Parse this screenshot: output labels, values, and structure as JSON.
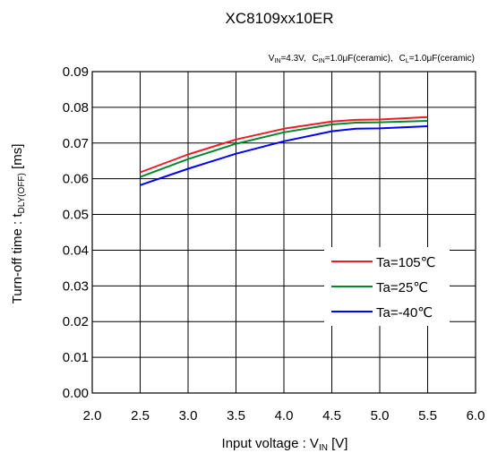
{
  "chart_data": {
    "type": "line",
    "title": "XC8109xx10ER",
    "conditions": {
      "vin_label": "V",
      "vin_sub": "IN",
      "vin_value": "=4.3V,",
      "cin_label": "C",
      "cin_sub": "IN",
      "cin_value": "=1.0μF(ceramic),",
      "cl_label": "C",
      "cl_sub": "L",
      "cl_value": "=1.0μF(ceramic)"
    },
    "xlabel": {
      "main": "Input voltage : V",
      "sub": "IN",
      "suffix": " [V]"
    },
    "ylabel": {
      "main": "Turn-off time : t",
      "sub": "DLY(OFF)",
      "suffix": " [ms]"
    },
    "xlim": [
      2.0,
      6.0
    ],
    "ylim": [
      0.0,
      0.09
    ],
    "x_ticks": [
      "2.0",
      "2.5",
      "3.0",
      "3.5",
      "4.0",
      "4.5",
      "5.0",
      "5.5",
      "6.0"
    ],
    "y_ticks": [
      "0.00",
      "0.01",
      "0.02",
      "0.03",
      "0.04",
      "0.05",
      "0.06",
      "0.07",
      "0.08",
      "0.09"
    ],
    "grid": true,
    "legend_position": "bottom-right",
    "series": [
      {
        "name": "Ta=105℃",
        "color": "#ee1c24",
        "x": [
          2.5,
          3.0,
          3.5,
          4.0,
          4.5,
          4.75,
          5.0,
          5.5
        ],
        "y": [
          0.0618,
          0.0668,
          0.071,
          0.074,
          0.076,
          0.0765,
          0.0766,
          0.0773
        ]
      },
      {
        "name": "Ta=25℃",
        "color": "#00892c",
        "x": [
          2.5,
          3.0,
          3.5,
          4.0,
          4.5,
          4.75,
          5.0,
          5.5
        ],
        "y": [
          0.0605,
          0.0655,
          0.0698,
          0.073,
          0.0752,
          0.0757,
          0.0758,
          0.0762
        ]
      },
      {
        "name": "Ta=-40℃",
        "color": "#0000ff",
        "x": [
          2.5,
          3.0,
          3.5,
          4.0,
          4.5,
          4.75,
          5.0,
          5.5
        ],
        "y": [
          0.0582,
          0.0628,
          0.067,
          0.0705,
          0.0733,
          0.074,
          0.0741,
          0.0747
        ]
      }
    ]
  }
}
